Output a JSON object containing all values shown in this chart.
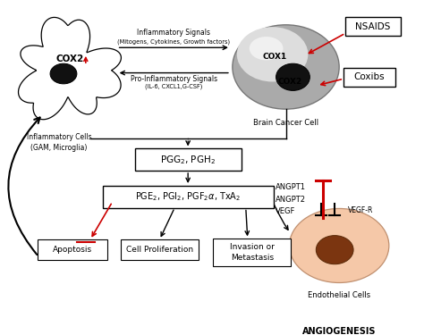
{
  "bg_color": "#ffffff",
  "fig_width": 4.74,
  "fig_height": 3.75,
  "dpi": 100,
  "inflammatory_cell_label": "Inflammatory Cells\n(GAM, Microglia)",
  "brain_cancer_label": "Brain Cancer Cell",
  "cox2_inflam": "COX2",
  "cox1_brain": "COX1",
  "cox2_brain": "COX2",
  "nsaids_label": "NSAIDS",
  "coxibs_label": "Coxibs",
  "inflam_signals_line1": "Inflammatory Signals",
  "inflam_signals_line2": "(Mitogens, Cytokines, Growth factors)",
  "pro_inflam_line1": "Pro-Inflammatory Signals",
  "pro_inflam_line2": "(IL-6, CXCL1,G-CSF)",
  "pgg_pgh": "PGG$_2$, PGH$_2$",
  "pge_label": "PGE$_2$, PGI$_2$, PGF$_2$$\\alpha$, TxA$_2$",
  "apoptosis": "Apoptosis",
  "cell_prolif": "Cell Proliferation",
  "invasion": "Invasion or\nMetastasis",
  "angpt_label": "ANGPT1\nANGPT2\nVEGF",
  "vegfr_label": "VEGF-R",
  "endothelial_label": "Endothelial Cells",
  "angiogenesis_label": "ANGIOGENESIS",
  "red_color": "#cc0000",
  "text_color": "#000000",
  "endothelial_fill": "#f5c8a8",
  "nucleus_fill_endo": "#7B3510"
}
